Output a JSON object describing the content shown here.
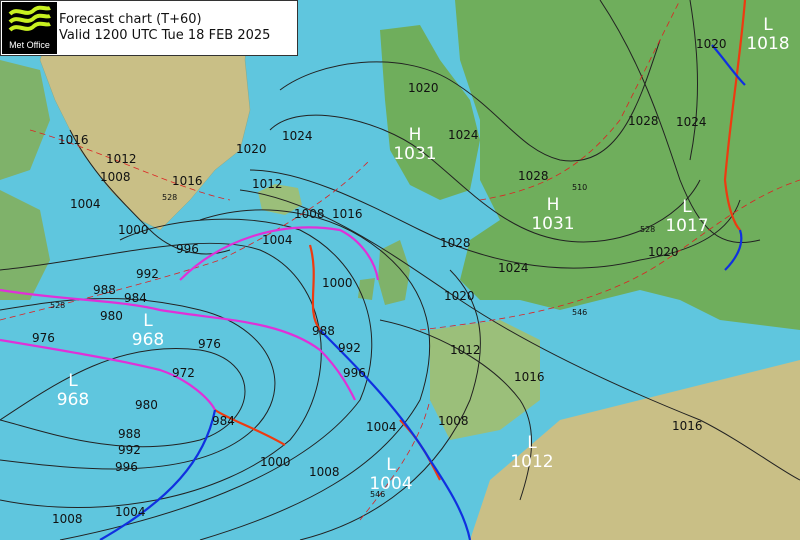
{
  "header": {
    "logo_text": "Met Office",
    "title": "Forecast chart (T+60)",
    "valid": "Valid 1200 UTC Tue 18 FEB 2025"
  },
  "colors": {
    "sea": "#5fc6de",
    "land_green": "#6fae5c",
    "land_tan": "#c9bf86",
    "isobar": "#222222",
    "cold_front": "#1030e0",
    "warm_front": "#ee3a10",
    "occluded_front": "#e030d8",
    "thickness": "#dd2222"
  },
  "pressure_centres": [
    {
      "type": "H",
      "value": "1031"
    },
    {
      "type": "H",
      "value": "1031"
    },
    {
      "type": "L",
      "value": "1017"
    },
    {
      "type": "L",
      "value": "1018"
    },
    {
      "type": "L",
      "value": "968"
    },
    {
      "type": "L",
      "value": "968"
    },
    {
      "type": "L",
      "value": "1004"
    },
    {
      "type": "L",
      "value": "1012"
    }
  ],
  "isobar_labels": [
    "1016",
    "1012",
    "1008",
    "1004",
    "1000",
    "1016",
    "1020",
    "1024",
    "1012",
    "1008",
    "1004",
    "1016",
    "992",
    "996",
    "988",
    "984",
    "980",
    "976",
    "976",
    "972",
    "980",
    "984",
    "988",
    "992",
    "996",
    "1000",
    "1004",
    "1008",
    "1008",
    "1004",
    "1000",
    "996",
    "992",
    "988",
    "1020",
    "1024",
    "1028",
    "1028",
    "1024",
    "1020",
    "1012",
    "1016",
    "1008",
    "1028",
    "1024",
    "1020",
    "1020",
    "1016"
  ],
  "thickness_labels": [
    "528",
    "528",
    "510",
    "528",
    "546",
    "546"
  ]
}
